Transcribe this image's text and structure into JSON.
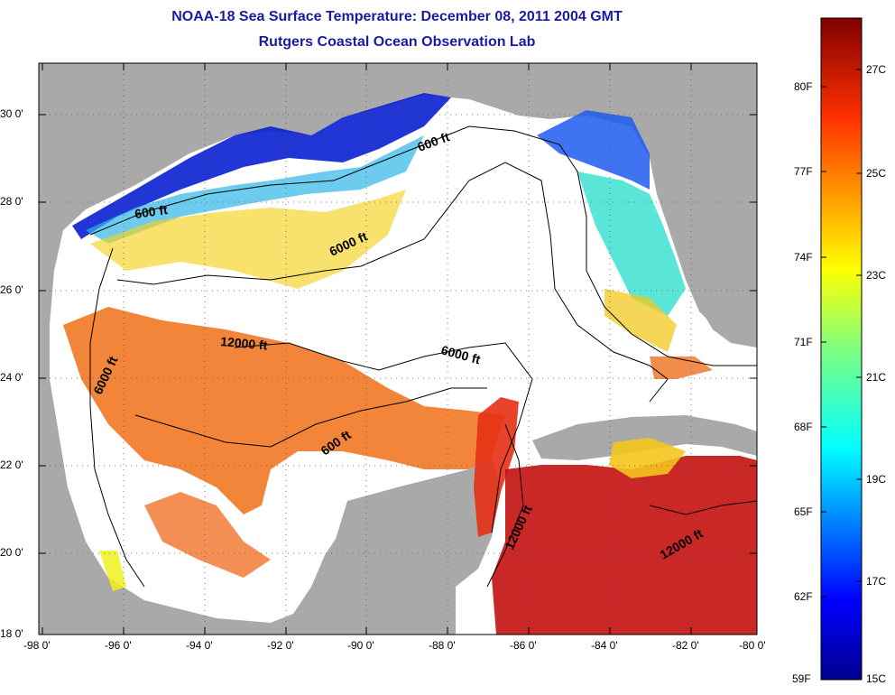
{
  "title": "NOAA-18 Sea Surface Temperature:  December 08, 2011 2004 GMT",
  "subtitle": "Rutgers Coastal Ocean Observation Lab",
  "x_ticks": [
    "-98 0'",
    "-96 0'",
    "-94 0'",
    "-92 0'",
    "-90 0'",
    "-88 0'",
    "-86 0'",
    "-84 0'",
    "-82 0'",
    "-80 0'"
  ],
  "y_ticks": [
    "30 0'",
    "28 0'",
    "26 0'",
    "24 0'",
    "22 0'",
    "20 0'",
    "18 0'"
  ],
  "contour_labels": [
    "600 ft",
    "600 ft",
    "6000 ft",
    "6000 ft",
    "12000 ft",
    "6000 ft",
    "600 ft",
    "12000 ft",
    "12000 ft"
  ],
  "colorbar": {
    "fahrenheit": [
      "80F",
      "77F",
      "74F",
      "71F",
      "68F",
      "65F",
      "62F",
      "59F"
    ],
    "celsius": [
      "27C",
      "25C",
      "23C",
      "21C",
      "19C",
      "17C",
      "15C"
    ]
  },
  "colors": {
    "land": "#a9a9a9",
    "ocean_nodata": "#ffffff",
    "title": "#1a1aa6"
  }
}
